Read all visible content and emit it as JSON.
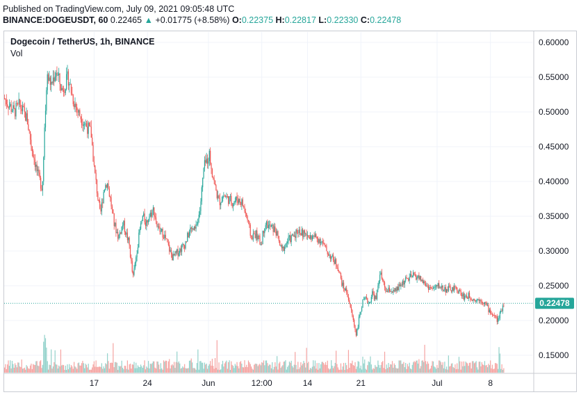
{
  "header": {
    "published": "Published on TradingView.com, July 09, 2021 09:05:48 UTC",
    "symbol": "BINANCE:DOGEUSDT, 60",
    "last": "0.22465",
    "change_arrow": "▲",
    "change": "+0.01775 (+8.58%)",
    "o_label": "O:",
    "o_value": "0.22375",
    "h_label": "H:",
    "h_value": "0.22817",
    "l_label": "L:",
    "l_value": "0.22330",
    "c_label": "C:",
    "c_value": "0.22478"
  },
  "legend": {
    "title": "Dogecoin / TetherUS, 1h, BINANCE",
    "volume_label": "Vol"
  },
  "price_tag": "0.22478",
  "colors": {
    "up": "#26a69a",
    "down": "#ef5350",
    "up_vol": "#93d2cb",
    "down_vol": "#f5a3a1",
    "grid": "#f0f3fa",
    "border": "#c8cbd2"
  },
  "chart_data": {
    "type": "candlestick",
    "title": "Dogecoin / TetherUS, 1h, BINANCE",
    "y_axis": {
      "ticks": [
        "0.60000",
        "0.55000",
        "0.50000",
        "0.45000",
        "0.40000",
        "0.35000",
        "0.30000",
        "0.25000",
        "0.20000",
        "0.15000"
      ],
      "values": [
        0.6,
        0.55,
        0.5,
        0.45,
        0.4,
        0.35,
        0.3,
        0.25,
        0.2,
        0.15
      ],
      "range": [
        0.125,
        0.615
      ]
    },
    "x_axis": {
      "labels": [
        "17",
        "24",
        "Jun",
        "12:00",
        "14",
        "21",
        "Jul",
        "8"
      ],
      "label_days": [
        5,
        12,
        20,
        27,
        33,
        40,
        50,
        57
      ],
      "range_days": [
        -6.8,
        62.5
      ]
    },
    "last_price": 0.22478,
    "trend": {
      "day": [
        -6.8,
        -5.5,
        -4.8,
        -3.8,
        -3.2,
        -2.4,
        -1.8,
        -1.2,
        -0.6,
        0.0,
        0.8,
        1.6,
        2.2,
        2.9,
        3.4,
        4.0,
        4.6,
        5.0,
        5.8,
        6.3,
        6.7,
        7.2,
        7.6,
        8.2,
        8.8,
        9.6,
        10.1,
        10.6,
        11.0,
        11.4,
        11.8,
        12.2,
        12.8,
        13.4,
        14.1,
        14.6,
        15.3,
        16.1,
        16.9,
        17.6,
        18.3,
        18.9,
        19.4,
        19.8,
        20.1,
        20.4,
        20.9,
        21.4,
        22.0,
        22.6,
        23.2,
        23.8,
        24.4,
        25.0,
        25.6,
        26.2,
        26.9,
        27.4,
        28.0,
        28.8,
        29.6,
        30.4,
        31.0,
        31.7,
        32.4,
        33.2,
        34.0,
        34.8,
        35.5,
        36.2,
        36.9,
        37.6,
        38.2,
        38.8,
        39.4,
        39.8,
        40.2,
        40.6,
        41.1,
        41.5,
        42.0,
        42.5,
        43.0,
        43.4,
        43.8,
        44.3,
        44.8,
        45.5,
        46.2,
        47.0,
        47.8,
        48.6,
        49.4,
        50.2,
        51.0,
        51.8,
        52.6,
        53.4,
        54.2,
        55.0,
        55.8,
        56.3,
        56.8,
        57.2,
        57.6,
        58.0,
        58.4,
        58.8
      ],
      "close": [
        0.52,
        0.5,
        0.51,
        0.49,
        0.45,
        0.41,
        0.39,
        0.55,
        0.54,
        0.56,
        0.53,
        0.55,
        0.52,
        0.5,
        0.49,
        0.48,
        0.47,
        0.42,
        0.35,
        0.39,
        0.4,
        0.37,
        0.34,
        0.32,
        0.34,
        0.31,
        0.26,
        0.3,
        0.33,
        0.35,
        0.34,
        0.35,
        0.36,
        0.33,
        0.325,
        0.31,
        0.29,
        0.3,
        0.31,
        0.33,
        0.33,
        0.36,
        0.42,
        0.43,
        0.44,
        0.42,
        0.39,
        0.37,
        0.38,
        0.375,
        0.37,
        0.375,
        0.37,
        0.35,
        0.32,
        0.325,
        0.31,
        0.34,
        0.335,
        0.33,
        0.3,
        0.315,
        0.32,
        0.33,
        0.325,
        0.32,
        0.32,
        0.315,
        0.3,
        0.29,
        0.28,
        0.25,
        0.24,
        0.21,
        0.18,
        0.205,
        0.225,
        0.23,
        0.225,
        0.24,
        0.23,
        0.27,
        0.25,
        0.24,
        0.245,
        0.24,
        0.245,
        0.255,
        0.26,
        0.265,
        0.26,
        0.25,
        0.245,
        0.25,
        0.245,
        0.245,
        0.245,
        0.235,
        0.235,
        0.23,
        0.23,
        0.225,
        0.215,
        0.21,
        0.205,
        0.2,
        0.215,
        0.225
      ]
    }
  }
}
